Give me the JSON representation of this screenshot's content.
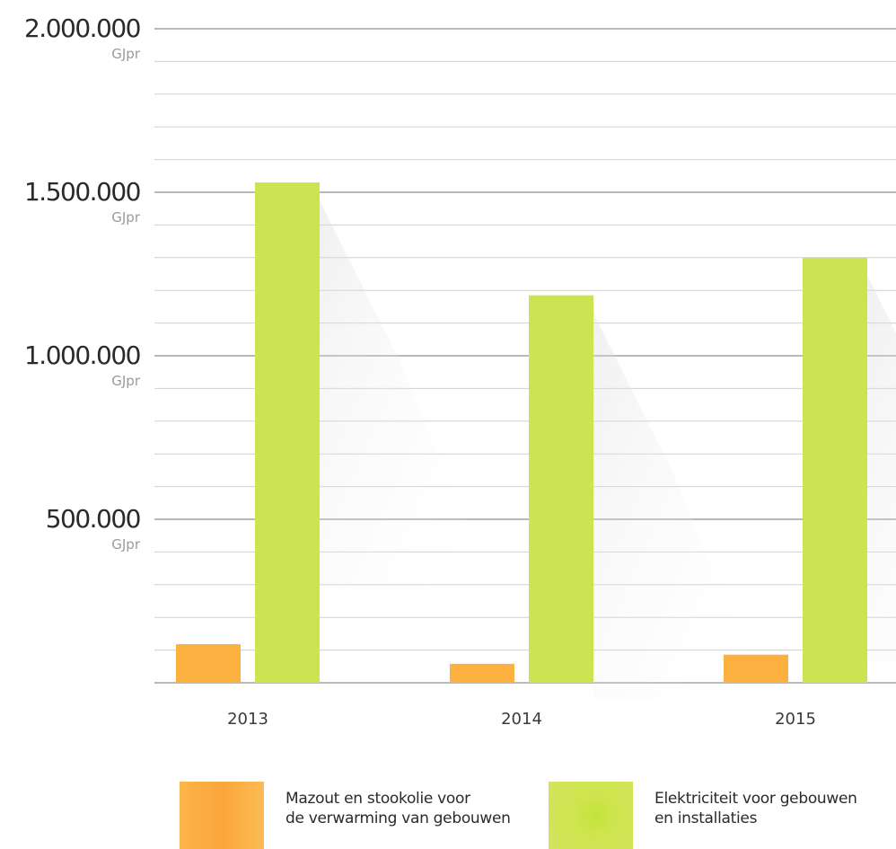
{
  "chart_data": {
    "type": "bar",
    "categories": [
      "2013",
      "2014",
      "2015"
    ],
    "series": [
      {
        "name": "Mazout en stookolie voor de verwarming van gebouwen",
        "color": "#fbb040",
        "values": [
          118000,
          58000,
          86000
        ]
      },
      {
        "name": "Elektriciteit voor gebouwen en installaties",
        "color": "#cce451",
        "values": [
          1530000,
          1185000,
          1300000
        ]
      }
    ],
    "ylim": [
      0,
      2000000
    ],
    "y_ticks": [
      {
        "value": 2000000,
        "label": "2.000.000",
        "unit": "GJpr"
      },
      {
        "value": 1500000,
        "label": "1.500.000",
        "unit": "GJpr"
      },
      {
        "value": 1000000,
        "label": "1.000.000",
        "unit": "GJpr"
      },
      {
        "value": 500000,
        "label": "500.000",
        "unit": "GJpr"
      }
    ],
    "minor_gridline_step": 100000,
    "grid": true,
    "legend_position": "bottom"
  },
  "legend": [
    {
      "line1": "Mazout en stookolie voor",
      "line2": "de verwarming van gebouwen",
      "color": "#fbb040"
    },
    {
      "line1": "Elektriciteit voor gebouwen",
      "line2": "en installaties",
      "color": "#cce451"
    }
  ]
}
